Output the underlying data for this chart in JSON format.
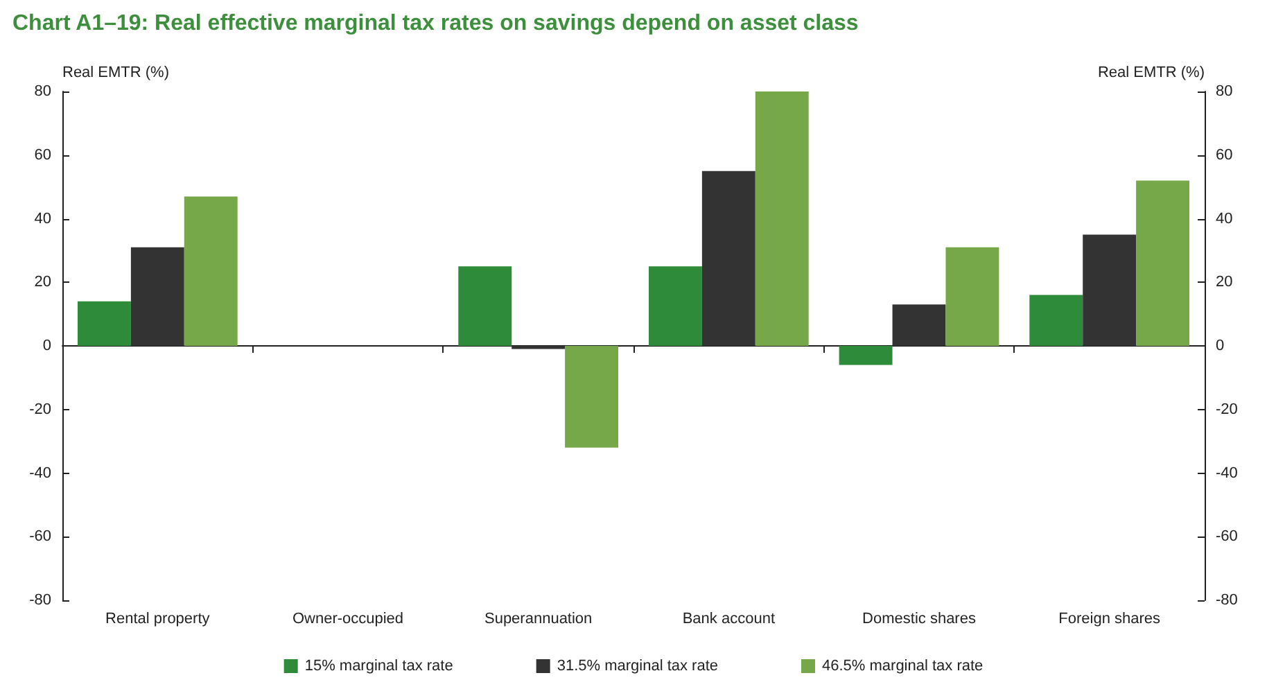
{
  "chart_data": {
    "type": "bar",
    "title": "Chart A1–19: Real effective marginal tax rates on savings depend on asset class",
    "ylabel": "Real EMTR (%)",
    "y2label": "Real EMTR (%)",
    "categories": [
      "Rental property",
      "Owner-occupied",
      "Superannuation",
      "Bank account",
      "Domestic shares",
      "Foreign shares"
    ],
    "series": [
      {
        "name": "15% marginal tax rate",
        "color": "#2e8b3a",
        "values": [
          14,
          0,
          25,
          25,
          -6,
          16
        ]
      },
      {
        "name": "31.5% marginal tax rate",
        "color": "#333333",
        "values": [
          31,
          0,
          -1,
          55,
          13,
          35
        ]
      },
      {
        "name": "46.5% marginal tax rate",
        "color": "#76a84a",
        "values": [
          47,
          0,
          -32,
          80,
          31,
          52
        ]
      }
    ],
    "ylim": [
      -80,
      80
    ],
    "yticks": [
      -80,
      -60,
      -40,
      -20,
      0,
      20,
      40,
      60,
      80
    ],
    "y2lim": [
      -80,
      80
    ],
    "y2ticks": [
      -80,
      -60,
      -40,
      -20,
      0,
      20,
      40,
      60,
      80
    ],
    "legend": "bottom"
  }
}
